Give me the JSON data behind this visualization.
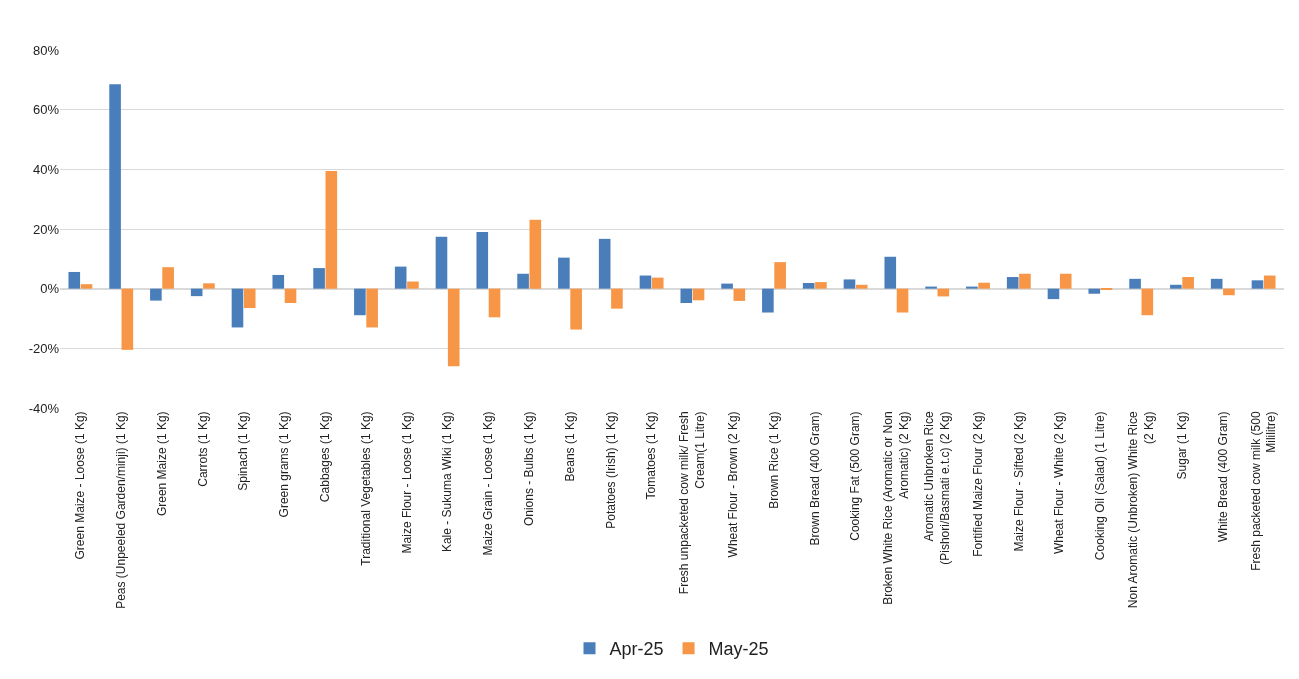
{
  "chart_data": {
    "type": "bar",
    "categories": [
      "Green Maize - Loose (1 Kg)",
      "Peas (Unpeeled Garden/minji) (1 Kg)",
      "Green Maize (1 Kg)",
      "Carrots (1 Kg)",
      "Spinach (1 Kg)",
      "Green grams (1 Kg)",
      "Cabbages (1 Kg)",
      "Traditional Vegetables (1 Kg)",
      "Maize Flour - Loose (1 Kg)",
      "Kale - Sukuma Wiki (1 Kg)",
      "Maize Grain - Loose (1 Kg)",
      "Onions - Bulbs (1 Kg)",
      "Beans (1 Kg)",
      "Potatoes (Irish) (1 Kg)",
      "Tomatoes (1 Kg)",
      "Fresh unpacketed cow milk/ Fresh Cream(1 Litre)",
      "Wheat Flour - Brown (2 Kg)",
      "Brown Rice (1 Kg)",
      "Brown Bread (400 Gram)",
      "Cooking Fat (500 Gram)",
      "Broken White Rice (Aromatic or Non Aromatic) (2 Kg)",
      "Aromatic Unbroken Rice (Pishori/Basmati e.t.c) (2 Kg)",
      "Fortified Maize Flour (2 Kg)",
      "Maize Flour - Sifted (2 Kg)",
      "Wheat Flour - White (2 Kg)",
      "Cooking Oil (Salad) (1 Litre)",
      "Non Aromatic (Unbroken) White Rice (2 Kg)",
      "Sugar (1 Kg)",
      "White Bread (400 Gram)",
      "Fresh packeted cow milk (500 Mililitre)"
    ],
    "series": [
      {
        "name": "Apr-25",
        "color": "#4a7ebb",
        "values": [
          5.6,
          68.5,
          -4,
          -2.5,
          -13,
          4.6,
          6.9,
          -8.9,
          7.4,
          17.4,
          19,
          5,
          10.4,
          16.7,
          4.4,
          -4.8,
          1.7,
          -8,
          1.9,
          3.1,
          10.7,
          0.7,
          0.7,
          3.9,
          -3.5,
          -1.7,
          3.3,
          1.3,
          3.3,
          2.8
        ]
      },
      {
        "name": "May-25",
        "color": "#f79646",
        "values": [
          1.5,
          -20.5,
          7.2,
          1.8,
          -6.5,
          -4.8,
          39.4,
          -13,
          2.4,
          -26,
          -9.6,
          23.1,
          -13.7,
          -6.7,
          3.7,
          -3.9,
          -4.1,
          8.9,
          2.2,
          1.3,
          -8,
          -2.6,
          2,
          5,
          5,
          -0.4,
          -8.9,
          3.9,
          -2.2,
          4.4
        ]
      }
    ],
    "ylim": [
      -40,
      80
    ],
    "yticks": [
      {
        "value": -40,
        "label": "-40%"
      },
      {
        "value": -20,
        "label": "-20%"
      },
      {
        "value": 0,
        "label": "0%"
      },
      {
        "value": 20,
        "label": "20%"
      },
      {
        "value": 40,
        "label": "40%"
      },
      {
        "value": 60,
        "label": "60%"
      },
      {
        "value": 80,
        "label": "80%"
      }
    ],
    "grid": "y",
    "legend": "bottom"
  }
}
